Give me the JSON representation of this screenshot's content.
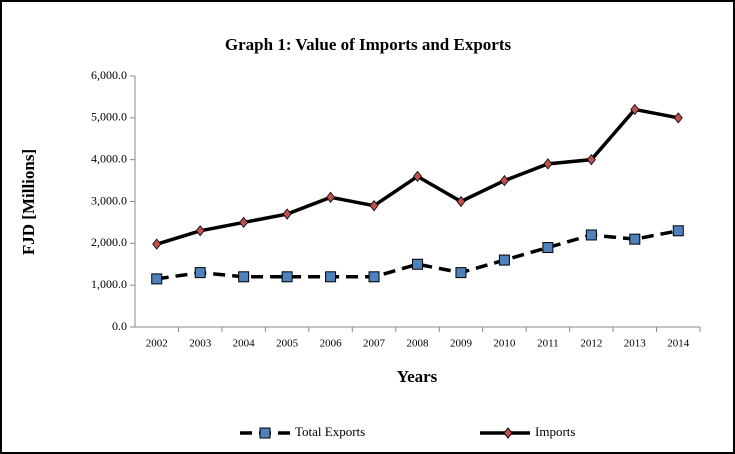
{
  "chart_data": {
    "type": "line",
    "title": "Graph  1: Value of Imports and Exports",
    "x_label": "Years",
    "y_label": "FJD [Millions]",
    "categories": [
      "2002",
      "2003",
      "2004",
      "2005",
      "2006",
      "2007",
      "2008",
      "2009",
      "2010",
      "2011",
      "2012",
      "2013",
      "2014"
    ],
    "series": [
      {
        "name": "Total Exports",
        "color": "#000000",
        "marker_color": "#4f81bd",
        "marker": "square",
        "dashed": true,
        "values": [
          1150,
          1300,
          1200,
          1200,
          1200,
          1200,
          1500,
          1300,
          1600,
          1900,
          2200,
          2100,
          2300
        ]
      },
      {
        "name": "Imports",
        "color": "#000000",
        "marker_color": "#c0504d",
        "marker": "diamond",
        "dashed": false,
        "values": [
          1980,
          2300,
          2500,
          2700,
          3100,
          2900,
          3600,
          3000,
          3500,
          3900,
          4000,
          5200,
          5000
        ]
      }
    ],
    "ylim": [
      0,
      6000
    ],
    "yticks": [
      {
        "value": 0,
        "label": "0.0"
      },
      {
        "value": 1000,
        "label": "1,000.0"
      },
      {
        "value": 2000,
        "label": "2,000.0"
      },
      {
        "value": 3000,
        "label": "3,000.0"
      },
      {
        "value": 4000,
        "label": "4,000.0"
      },
      {
        "value": 5000,
        "label": "5,000.0"
      },
      {
        "value": 6000,
        "label": "6,000.0"
      }
    ],
    "grid": false,
    "legend": "bottom"
  }
}
